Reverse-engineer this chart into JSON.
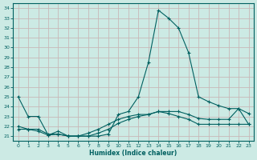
{
  "xlabel": "Humidex (Indice chaleur)",
  "ylabel": "",
  "xlim": [
    -0.5,
    23.5
  ],
  "ylim": [
    20.5,
    34.5
  ],
  "yticks": [
    21,
    22,
    23,
    24,
    25,
    26,
    27,
    28,
    29,
    30,
    31,
    32,
    33,
    34
  ],
  "xticks": [
    0,
    1,
    2,
    3,
    4,
    5,
    6,
    7,
    8,
    9,
    10,
    11,
    12,
    13,
    14,
    15,
    16,
    17,
    18,
    19,
    20,
    21,
    22,
    23
  ],
  "bg_color": "#cceae4",
  "plot_bg_color": "#cceae4",
  "line_color": "#006060",
  "grid_color_major": "#c8b8b8",
  "grid_color_minor": "#cceae4",
  "line1_y": [
    25.0,
    23.0,
    23.0,
    21.1,
    21.2,
    21.0,
    21.0,
    21.0,
    21.0,
    21.2,
    23.2,
    23.5,
    25.0,
    28.5,
    33.8,
    33.0,
    32.0,
    29.5,
    25.0,
    24.5,
    24.1,
    23.8,
    23.8,
    23.3
  ],
  "line2_y": [
    22.0,
    21.7,
    21.7,
    21.2,
    21.2,
    21.0,
    21.0,
    21.0,
    21.3,
    21.7,
    22.3,
    22.7,
    23.0,
    23.2,
    23.5,
    23.5,
    23.5,
    23.2,
    22.8,
    22.7,
    22.7,
    22.7,
    23.8,
    22.2
  ],
  "line3_y": [
    21.7,
    21.7,
    21.5,
    21.1,
    21.5,
    21.0,
    21.0,
    21.3,
    21.7,
    22.2,
    22.7,
    23.0,
    23.2,
    23.2,
    23.5,
    23.3,
    23.0,
    22.7,
    22.2,
    22.2,
    22.2,
    22.2,
    22.2,
    22.2
  ]
}
